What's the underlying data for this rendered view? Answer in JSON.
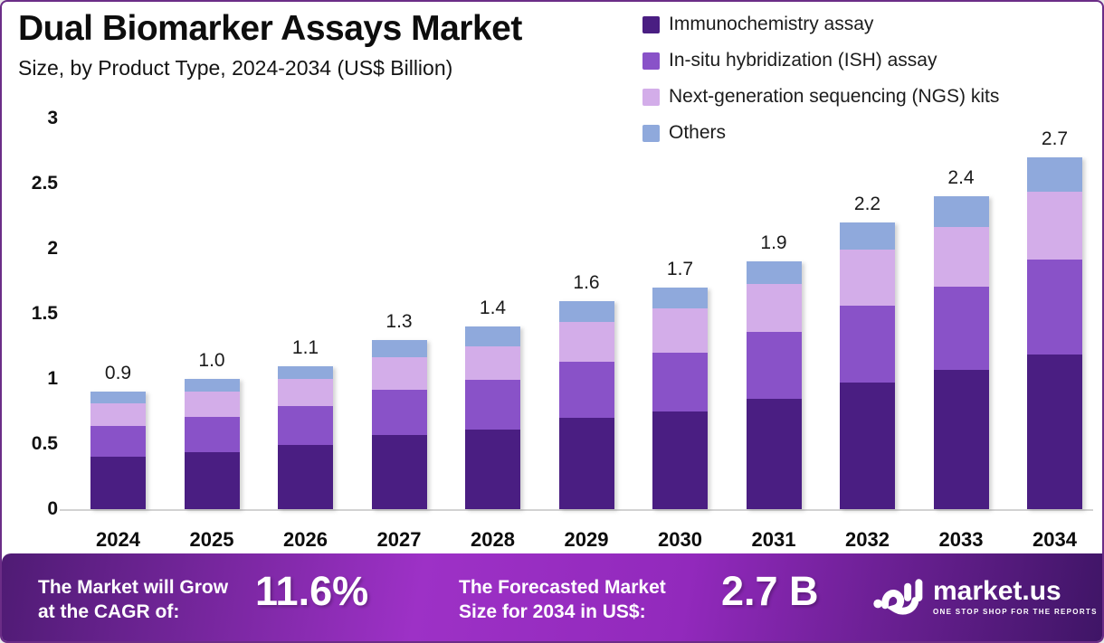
{
  "title": "Dual Biomarker Assays Market",
  "subtitle": "Size, by Product Type, 2024-2034 (US$ Billion)",
  "colors": {
    "immunochemistry": "#4A1E82",
    "ish": "#8952C8",
    "ngs": "#D3ADE9",
    "others": "#8FA9DC",
    "frame_border": "#6B2D87",
    "banner_left": "#4F1B74",
    "banner_center": "#9D31C6",
    "banner_right": "#3F1566",
    "axis": "#D2D2D2"
  },
  "chart_data": {
    "type": "bar",
    "stacked": true,
    "grid": false,
    "legend_position": "top-right",
    "title": "Dual Biomarker Assays Market",
    "subtitle": "Size, by Product Type, 2024-2034 (US$ Billion)",
    "xlabel": "",
    "ylabel": "US$ Billion",
    "ylim": [
      0,
      3
    ],
    "yticks": [
      {
        "label": "0",
        "value": 0
      },
      {
        "label": "0.5",
        "value": 0.5
      },
      {
        "label": "1",
        "value": 1
      },
      {
        "label": "1.5",
        "value": 1.5
      },
      {
        "label": "2",
        "value": 2
      },
      {
        "label": "2.5",
        "value": 2.5
      },
      {
        "label": "3",
        "value": 3
      }
    ],
    "categories": [
      "2024",
      "2025",
      "2026",
      "2027",
      "2028",
      "2029",
      "2030",
      "2031",
      "2032",
      "2033",
      "2034"
    ],
    "series": [
      {
        "name": "Immunochemistry assay",
        "color": "#4A1E82",
        "values": [
          0.4,
          0.44,
          0.49,
          0.57,
          0.61,
          0.7,
          0.75,
          0.85,
          0.97,
          1.07,
          1.19
        ]
      },
      {
        "name": "In-situ hybridization (ISH) assay",
        "color": "#8952C8",
        "values": [
          0.24,
          0.27,
          0.3,
          0.35,
          0.38,
          0.43,
          0.45,
          0.51,
          0.59,
          0.64,
          0.73
        ]
      },
      {
        "name": "Next-generation sequencing (NGS) kits",
        "color": "#D3ADE9",
        "values": [
          0.17,
          0.19,
          0.21,
          0.25,
          0.26,
          0.31,
          0.34,
          0.37,
          0.43,
          0.46,
          0.52
        ]
      },
      {
        "name": "Others",
        "color": "#8FA9DC",
        "values": [
          0.09,
          0.1,
          0.1,
          0.13,
          0.15,
          0.16,
          0.16,
          0.17,
          0.21,
          0.23,
          0.26
        ]
      }
    ],
    "bar_total_labels": [
      "0.9",
      "1.0",
      "1.1",
      "1.3",
      "1.4",
      "1.6",
      "1.7",
      "1.9",
      "2.2",
      "2.4",
      "2.7"
    ]
  },
  "footer": {
    "cagr_line1": "The Market will Grow",
    "cagr_line2": "at the CAGR of:",
    "cagr_value": "11.6%",
    "forecast_line1": "The Forecasted Market",
    "forecast_line2": "Size for 2034 in US$:",
    "forecast_value": "2.7 B",
    "brand": "market.us",
    "brand_tagline": "ONE STOP SHOP FOR THE REPORTS"
  }
}
